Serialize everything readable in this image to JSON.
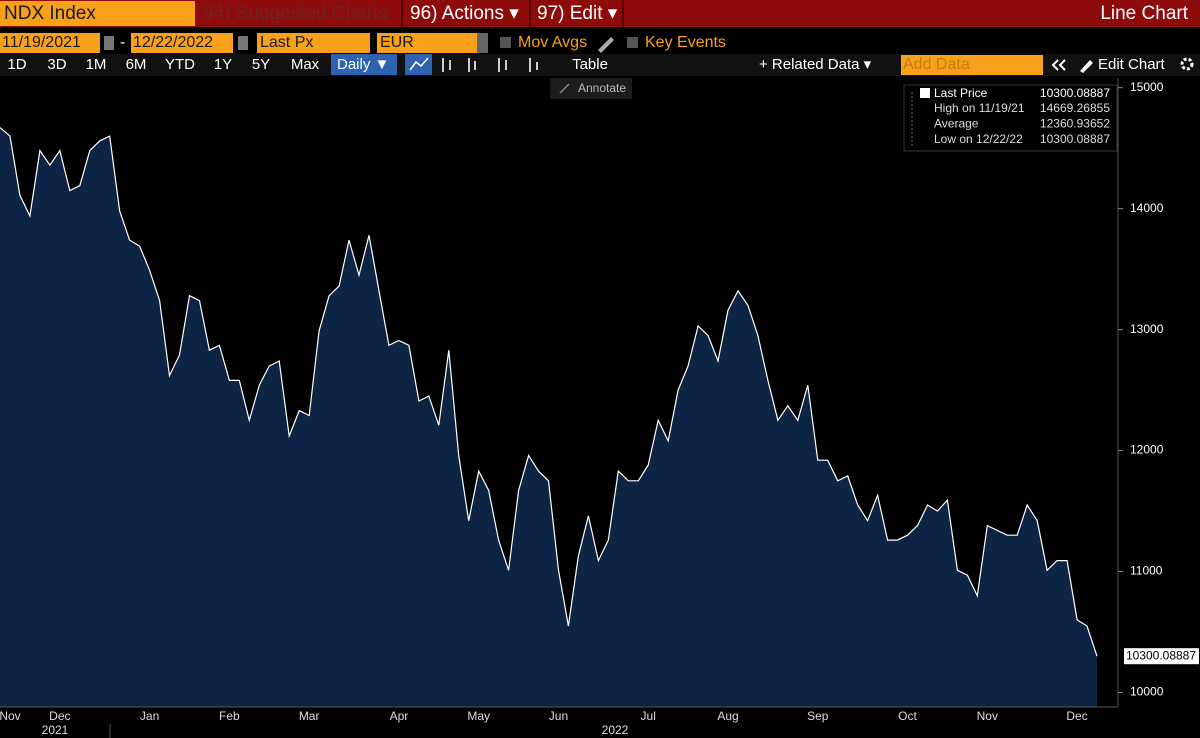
{
  "ui": {
    "top_bar": {
      "ticker": "NDX Index",
      "menus": [
        "94) Suggested Charts",
        "96) Actions ▾",
        "97) Edit ▾"
      ],
      "chart_type": "Line Chart"
    },
    "controls": {
      "start_date": "11/19/2021",
      "separator": "-",
      "end_date": "12/22/2022",
      "field": "Last Px",
      "currency": "EUR",
      "toggles": [
        "Mov Avgs",
        "Key Events"
      ]
    },
    "toolbar": {
      "ranges": [
        "1D",
        "3D",
        "1M",
        "6M",
        "YTD",
        "1Y",
        "5Y",
        "Max"
      ],
      "frequency": "Daily ▼",
      "table": "Table",
      "related": "+ Related Data ▾",
      "add_data": "Add Data",
      "edit": "Edit Chart"
    },
    "annotate": "Annotate"
  },
  "chart_data": {
    "type": "line",
    "fill": "#0d2445",
    "categories": [
      null,
      "Nov",
      null,
      null,
      null,
      null,
      "Dec",
      null,
      null,
      null,
      null,
      null,
      null,
      null,
      null,
      "Jan",
      null,
      null,
      null,
      null,
      null,
      null,
      null,
      "Feb",
      null,
      null,
      null,
      null,
      null,
      null,
      null,
      "Mar",
      null,
      null,
      null,
      null,
      null,
      null,
      null,
      null,
      "Apr",
      null,
      null,
      null,
      null,
      null,
      null,
      null,
      "May",
      null,
      null,
      null,
      null,
      null,
      null,
      null,
      "Jun",
      null,
      null,
      null,
      null,
      null,
      null,
      null,
      null,
      "Jul",
      null,
      null,
      null,
      null,
      null,
      null,
      null,
      "Aug",
      null,
      null,
      null,
      null,
      null,
      null,
      null,
      null,
      "Sep",
      null,
      null,
      null,
      null,
      null,
      null,
      null,
      null,
      "Oct",
      null,
      null,
      null,
      null,
      null,
      null,
      null,
      "Nov",
      null,
      null,
      null,
      null,
      null,
      null,
      null,
      null,
      "Dec",
      null,
      null
    ],
    "year_labels": [
      "2021",
      "2022"
    ],
    "series": [
      {
        "name": "Last Price",
        "color": "#ffffff",
        "values": [
          14670,
          14600,
          14110,
          13940,
          14480,
          14360,
          14480,
          14150,
          14190,
          14480,
          14560,
          14600,
          13980,
          13740,
          13690,
          13490,
          13240,
          12620,
          12790,
          13280,
          13240,
          12830,
          12870,
          12580,
          12580,
          12250,
          12540,
          12700,
          12740,
          12120,
          12330,
          12290,
          12990,
          13280,
          13360,
          13740,
          13450,
          13780,
          13320,
          12870,
          12910,
          12870,
          12410,
          12450,
          12210,
          12830,
          11960,
          11420,
          11830,
          11670,
          11260,
          11010,
          11670,
          11960,
          11830,
          11750,
          11010,
          10550,
          11130,
          11460,
          11090,
          11260,
          11830,
          11750,
          11750,
          11880,
          12250,
          12080,
          12500,
          12700,
          13030,
          12950,
          12740,
          13160,
          13320,
          13200,
          12950,
          12580,
          12250,
          12370,
          12250,
          12540,
          11920,
          11920,
          11750,
          11790,
          11550,
          11420,
          11630,
          11260,
          11260,
          11300,
          11380,
          11550,
          11500,
          11590,
          11010,
          10970,
          10800,
          11380,
          11340,
          11300,
          11300,
          11550,
          11420,
          11010,
          11090,
          11090,
          10600,
          10550,
          10300.08887
        ]
      }
    ],
    "stats": [
      {
        "label": "High on 11/19/21",
        "value": 14669.26855
      },
      {
        "label": "Average",
        "value": 12360.93652
      },
      {
        "label": "Low on 12/22/22",
        "value": 10300.08887
      }
    ],
    "ylim": [
      9880,
      15080
    ],
    "yticks": [
      10000,
      11000,
      12000,
      13000,
      14000,
      15000
    ]
  }
}
